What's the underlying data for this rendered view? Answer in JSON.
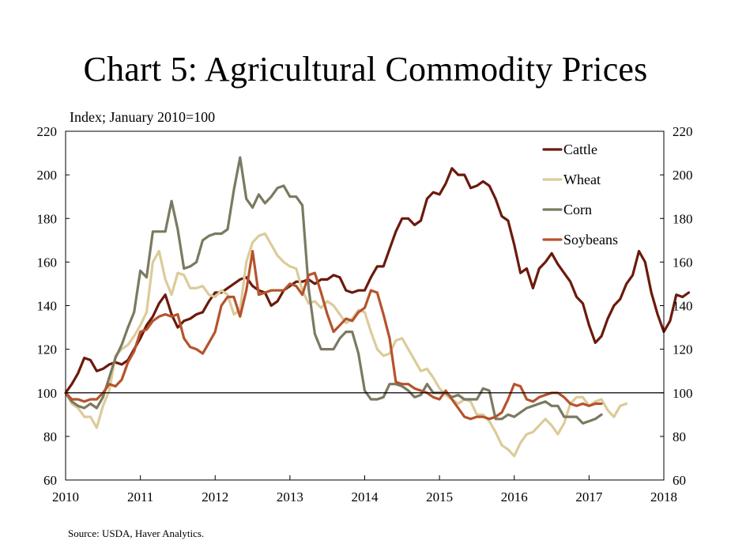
{
  "title": "Chart 5: Agricultural Commodity Prices",
  "source": "Source: USDA, Haver Analytics.",
  "chart_data": {
    "type": "line",
    "title": "Chart 5: Agricultural Commodity Prices",
    "ylabel": "Index; January 2010=100",
    "ylim": [
      60,
      220
    ],
    "yticks": [
      60,
      80,
      100,
      120,
      140,
      160,
      180,
      200,
      220
    ],
    "xlim": [
      2010,
      2018
    ],
    "xticks": [
      "2010",
      "2011",
      "2012",
      "2013",
      "2014",
      "2015",
      "2016",
      "2017",
      "2018"
    ],
    "reference_line": 100,
    "legend_position": "top-right",
    "x_start": 2010.0,
    "x_step": 0.0833333,
    "series": [
      {
        "name": "Cattle",
        "color": "#6b1a0c",
        "values": [
          100,
          104,
          109,
          116,
          115,
          110,
          111,
          113,
          114,
          113,
          115,
          120,
          125,
          131,
          135,
          141,
          145,
          136,
          130,
          133,
          134,
          136,
          137,
          142,
          146,
          146,
          148,
          150,
          152,
          153,
          149,
          147,
          146,
          140,
          142,
          147,
          149,
          151,
          151,
          152,
          150,
          152,
          152,
          154,
          153,
          147,
          146,
          147,
          147,
          153,
          158,
          158,
          166,
          174,
          180,
          180,
          177,
          179,
          189,
          192,
          191,
          196,
          203,
          200,
          200,
          194,
          195,
          197,
          195,
          189,
          181,
          179,
          168,
          155,
          157,
          148,
          157,
          160,
          164,
          159,
          155,
          151,
          144,
          141,
          131,
          123,
          126,
          134,
          140,
          143,
          150,
          154,
          165,
          160,
          146,
          136,
          128,
          133,
          145,
          144,
          146
        ]
      },
      {
        "name": "Wheat",
        "color": "#dccb9a",
        "values": [
          100,
          95,
          93,
          89,
          89,
          84,
          94,
          101,
          117,
          120,
          122,
          126,
          131,
          137,
          160,
          165,
          152,
          145,
          155,
          154,
          148,
          148,
          149,
          145,
          144,
          147,
          145,
          136,
          138,
          160,
          169,
          172,
          173,
          168,
          163,
          160,
          158,
          157,
          147,
          141,
          142,
          139,
          142,
          140,
          136,
          132,
          134,
          138,
          137,
          128,
          120,
          117,
          118,
          124,
          125,
          120,
          115,
          110,
          111,
          107,
          102,
          99,
          97,
          95,
          97,
          96,
          90,
          90,
          87,
          82,
          76,
          74,
          71,
          77,
          81,
          82,
          85,
          88,
          85,
          81,
          86,
          95,
          98,
          98,
          94,
          96,
          97,
          92,
          89,
          94,
          95
        ]
      },
      {
        "name": "Corn",
        "color": "#7b7a60",
        "values": [
          100,
          96,
          94,
          93,
          95,
          93,
          98,
          107,
          116,
          122,
          130,
          137,
          156,
          153,
          174,
          174,
          174,
          188,
          175,
          157,
          158,
          160,
          170,
          172,
          173,
          173,
          175,
          193,
          208,
          189,
          185,
          191,
          187,
          190,
          194,
          195,
          190,
          190,
          186,
          148,
          127,
          120,
          120,
          120,
          125,
          128,
          128,
          118,
          101,
          97,
          97,
          98,
          104,
          104,
          103,
          101,
          98,
          99,
          104,
          100,
          100,
          100,
          98,
          99,
          97,
          97,
          97,
          102,
          101,
          88,
          88,
          90,
          89,
          91,
          93,
          94,
          95,
          96,
          94,
          94,
          89,
          89,
          89,
          86,
          87,
          88,
          90
        ]
      },
      {
        "name": "Soybeans",
        "color": "#b5532c",
        "values": [
          100,
          97,
          97,
          96,
          97,
          97,
          100,
          104,
          103,
          106,
          114,
          119,
          128,
          129,
          133,
          135,
          136,
          135,
          136,
          125,
          121,
          120,
          118,
          123,
          128,
          140,
          144,
          144,
          135,
          147,
          165,
          145,
          146,
          147,
          147,
          147,
          150,
          149,
          145,
          154,
          155,
          146,
          136,
          128,
          131,
          134,
          133,
          137,
          139,
          147,
          146,
          136,
          125,
          105,
          104,
          104,
          102,
          101,
          100,
          98,
          97,
          101,
          97,
          93,
          89,
          88,
          89,
          89,
          88,
          89,
          91,
          97,
          104,
          103,
          97,
          96,
          98,
          99,
          100,
          100,
          98,
          95,
          94,
          95,
          94,
          95,
          95
        ]
      }
    ]
  }
}
